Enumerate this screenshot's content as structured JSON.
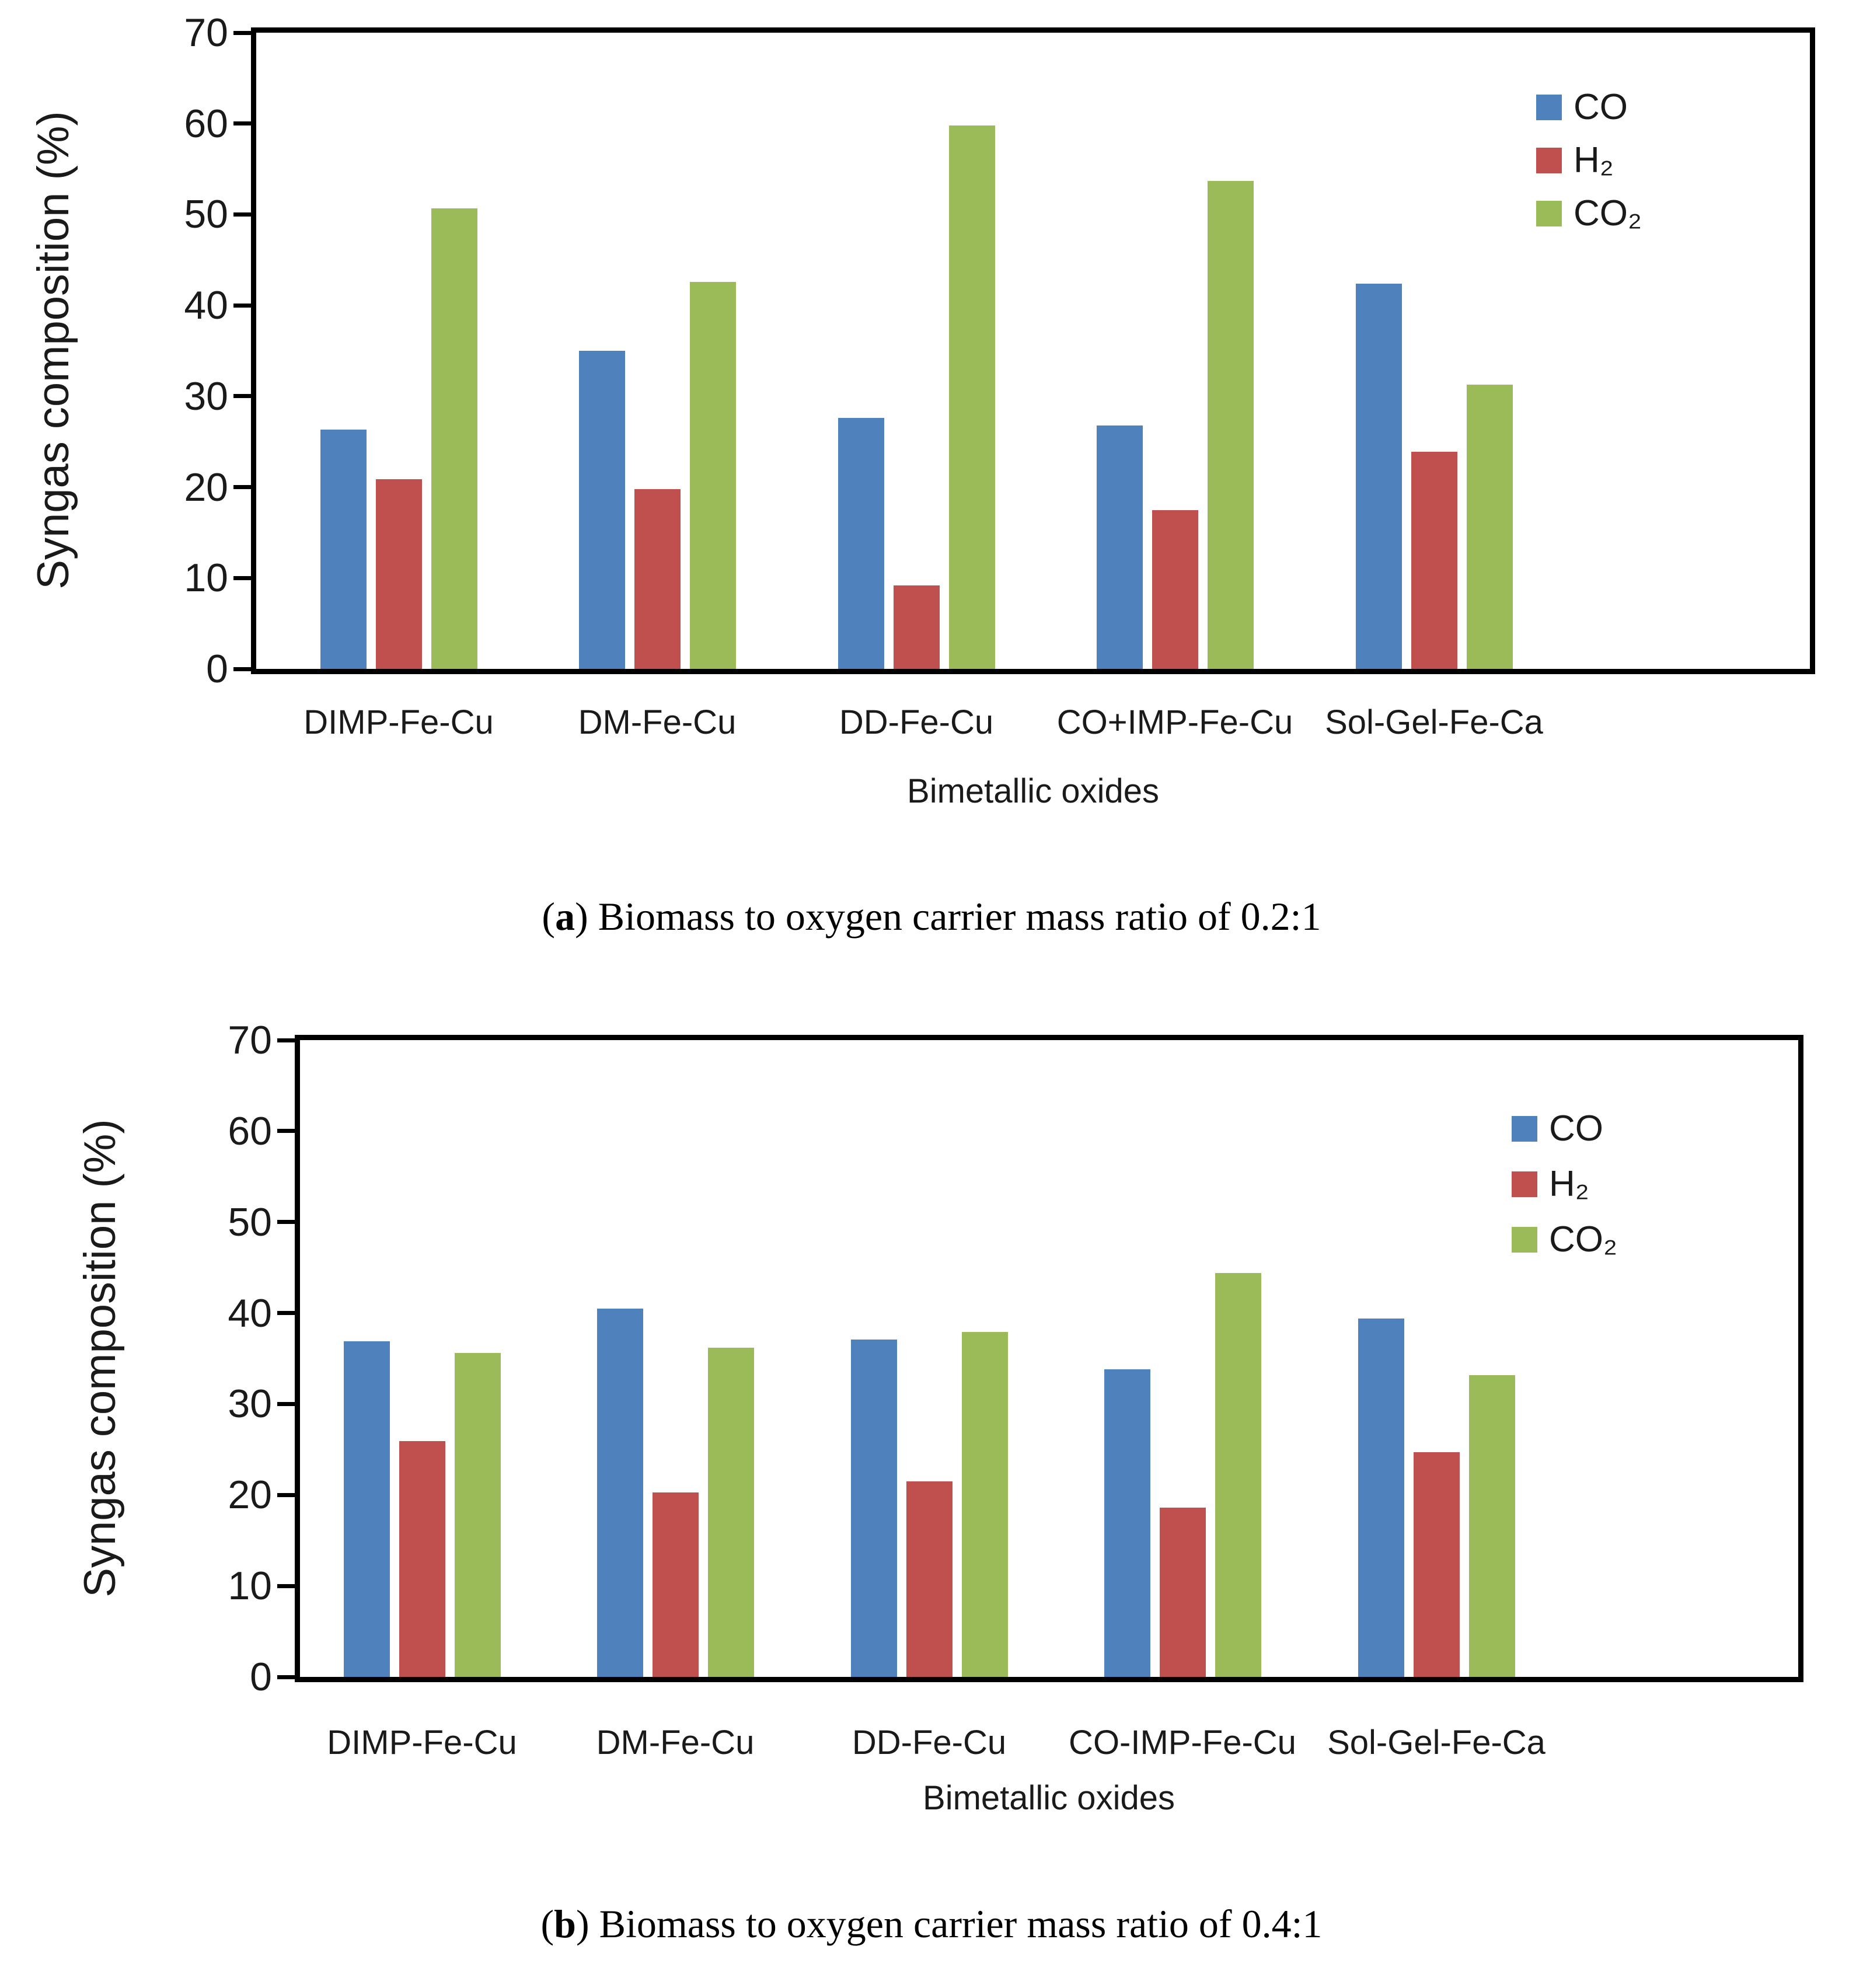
{
  "page": {
    "background": "#ffffff"
  },
  "chart_data": [
    {
      "type": "bar",
      "panel": "a",
      "caption": {
        "open": "(",
        "letter": "a",
        "rest": ") Biomass to oxygen carrier mass ratio of 0.2:1"
      },
      "xlabel": "Bimetallic oxides",
      "ylabel": "Syngas composition (%)",
      "ylim": [
        0,
        70
      ],
      "yticks": [
        0,
        10,
        20,
        30,
        40,
        50,
        60,
        70
      ],
      "grid": false,
      "legend_position": "upper-right-inside",
      "categories": [
        "DIMP-Fe-Cu",
        "DM-Fe-Cu",
        "DD-Fe-Cu",
        "CO+IMP-Fe-Cu",
        "Sol-Gel-Fe-Ca"
      ],
      "series": [
        {
          "name": "CO",
          "color": "#4F81BD",
          "values": [
            26.3,
            35.0,
            27.6,
            26.8,
            42.4
          ]
        },
        {
          "name": "H₂",
          "color": "#C0504D",
          "values": [
            20.9,
            19.8,
            9.2,
            17.5,
            23.9
          ]
        },
        {
          "name": "CO₂",
          "color": "#9BBB59",
          "values": [
            50.7,
            42.6,
            59.8,
            53.7,
            31.3
          ]
        }
      ]
    },
    {
      "type": "bar",
      "panel": "b",
      "caption": {
        "open": "(",
        "letter": "b",
        "rest": ") Biomass to oxygen carrier mass ratio of 0.4:1"
      },
      "xlabel": "Bimetallic oxides",
      "ylabel": "Syngas composition (%)",
      "ylim": [
        0,
        70
      ],
      "yticks": [
        0,
        10,
        20,
        30,
        40,
        50,
        60,
        70
      ],
      "grid": false,
      "legend_position": "upper-right-inside",
      "categories": [
        "DIMP-Fe-Cu",
        "DM-Fe-Cu",
        "DD-Fe-Cu",
        "CO-IMP-Fe-Cu",
        "Sol-Gel-Fe-Ca"
      ],
      "series": [
        {
          "name": "CO",
          "color": "#4F81BD",
          "values": [
            36.9,
            40.5,
            37.1,
            33.8,
            39.4
          ]
        },
        {
          "name": "H₂",
          "color": "#C0504D",
          "values": [
            25.9,
            20.3,
            21.5,
            18.6,
            24.7
          ]
        },
        {
          "name": "CO₂",
          "color": "#9BBB59",
          "values": [
            35.6,
            36.2,
            37.9,
            44.4,
            33.2
          ]
        }
      ]
    }
  ]
}
